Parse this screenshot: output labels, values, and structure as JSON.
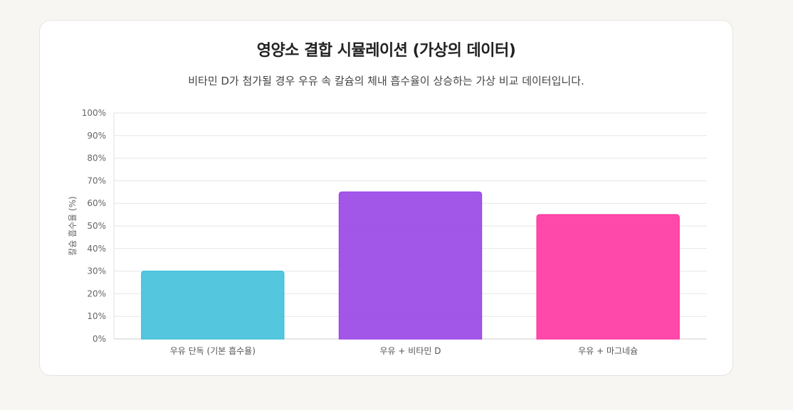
{
  "chart_data": {
    "type": "bar",
    "title": "영양소 결합 시뮬레이션 (가상의 데이터)",
    "subtitle": "비타민 D가 첨가될 경우 우유 속 칼슘의 체내 흡수율이 상승하는 가상 비교 데이터입니다.",
    "categories": [
      "우유 단독 (기본 흡수율)",
      "우유 + 비타민 D",
      "우유 + 마그네슘"
    ],
    "values": [
      30,
      65,
      55
    ],
    "colors": [
      "#45c1da",
      "#9b49e6",
      "#ff3aa3"
    ],
    "ylabel": "칼슘 흡수율 (%)",
    "xlabel": "",
    "ylim": [
      0,
      100
    ],
    "yticks": [
      "0%",
      "10%",
      "20%",
      "30%",
      "40%",
      "50%",
      "60%",
      "70%",
      "80%",
      "90%",
      "100%"
    ],
    "grid": true,
    "legend": "none"
  }
}
